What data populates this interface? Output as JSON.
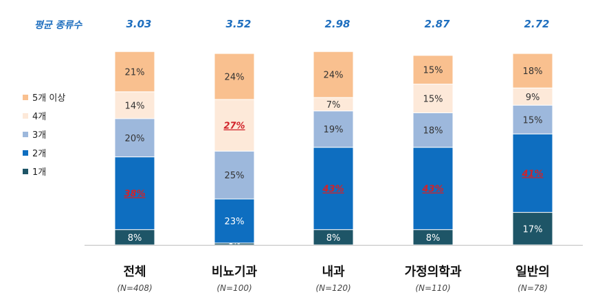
{
  "chart_data": {
    "type": "bar",
    "stacked": true,
    "categories": [
      "전체",
      "비뇨기과",
      "내과",
      "가정의학과",
      "일반의"
    ],
    "sample_sizes": [
      "(N=408)",
      "(N=100)",
      "(N=120)",
      "(N=110)",
      "(N=78)"
    ],
    "avg_title": "평균 종류수",
    "averages": [
      "3.03",
      "3.52",
      "2.98",
      "2.87",
      "2.72"
    ],
    "ylim": [
      0,
      100
    ],
    "legend_position": "left",
    "series": [
      {
        "name": "1개",
        "color": "#1e5567",
        "values": [
          8,
          1,
          8,
          8,
          17
        ]
      },
      {
        "name": "2개",
        "color": "#0e6ec0",
        "values": [
          38,
          23,
          43,
          43,
          41
        ]
      },
      {
        "name": "3개",
        "color": "#9db8dc",
        "values": [
          20,
          25,
          19,
          18,
          15
        ]
      },
      {
        "name": "4개",
        "color": "#fde9d9",
        "values": [
          14,
          27,
          7,
          15,
          9
        ]
      },
      {
        "name": "5개 이상",
        "color": "#f9c08f",
        "values": [
          21,
          24,
          24,
          15,
          18
        ]
      }
    ],
    "highlighted": [
      {
        "category": "전체",
        "series": "2개"
      },
      {
        "category": "비뇨기과",
        "series": "4개"
      },
      {
        "category": "내과",
        "series": "2개"
      },
      {
        "category": "가정의학과",
        "series": "2개"
      },
      {
        "category": "일반의",
        "series": "2개"
      }
    ],
    "highlight_color": "#d1232a"
  }
}
